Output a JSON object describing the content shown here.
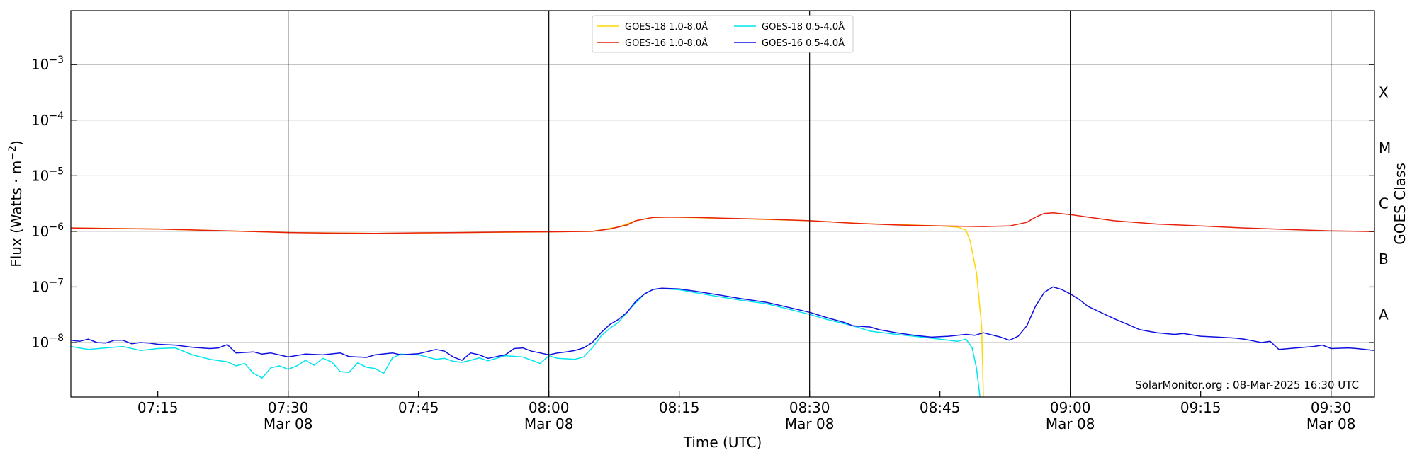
{
  "chart_data": {
    "type": "line",
    "xlabel": "Time (UTC)",
    "ylabel_parts": [
      "Flux (Watts · m",
      "−2",
      ")"
    ],
    "right_label": "GOES Class",
    "credit": "SolarMonitor.org : 08-Mar-2025 16:30 UTC",
    "x_range": [
      "07:05",
      "09:35"
    ],
    "y_log_range": [
      -8.98,
      -2.03
    ],
    "y_scale": "log",
    "grid": true,
    "legend_position": "top-center",
    "x_ticks": [
      {
        "time": "07:15",
        "label": "07:15",
        "date": ""
      },
      {
        "time": "07:30",
        "label": "07:30",
        "date": "Mar 08"
      },
      {
        "time": "07:45",
        "label": "07:45",
        "date": ""
      },
      {
        "time": "08:00",
        "label": "08:00",
        "date": "Mar 08"
      },
      {
        "time": "08:15",
        "label": "08:15",
        "date": ""
      },
      {
        "time": "08:30",
        "label": "08:30",
        "date": "Mar 08"
      },
      {
        "time": "08:45",
        "label": "08:45",
        "date": ""
      },
      {
        "time": "09:00",
        "label": "09:00",
        "date": "Mar 08"
      },
      {
        "time": "09:15",
        "label": "09:15",
        "date": ""
      },
      {
        "time": "09:30",
        "label": "09:30",
        "date": "Mar 08"
      }
    ],
    "y_ticks": [
      {
        "exp": -8,
        "base": "10",
        "power": "−8"
      },
      {
        "exp": -7,
        "base": "10",
        "power": "−7"
      },
      {
        "exp": -6,
        "base": "10",
        "power": "−6"
      },
      {
        "exp": -5,
        "base": "10",
        "power": "−5"
      },
      {
        "exp": -4,
        "base": "10",
        "power": "−4"
      },
      {
        "exp": -3,
        "base": "10",
        "power": "−3"
      }
    ],
    "goes_classes": [
      {
        "label": "A",
        "exp": -7.5
      },
      {
        "label": "B",
        "exp": -6.5
      },
      {
        "label": "C",
        "exp": -5.5
      },
      {
        "label": "M",
        "exp": -4.5
      },
      {
        "label": "X",
        "exp": -3.5
      }
    ],
    "vertical_lines": [
      "07:30",
      "08:00",
      "08:30",
      "09:00",
      "09:30"
    ],
    "series": [
      {
        "name": "GOES-18 1.0-8.0Å",
        "color": "#FFD700",
        "points": [
          [
            "07:05",
            1.15e-06
          ],
          [
            "07:15",
            1.1e-06
          ],
          [
            "07:30",
            9.5e-07
          ],
          [
            "07:40",
            9.2e-07
          ],
          [
            "07:50",
            9.5e-07
          ],
          [
            "08:00",
            9.8e-07
          ],
          [
            "08:05",
            1e-06
          ],
          [
            "08:08",
            1.2e-06
          ],
          [
            "08:10",
            1.55e-06
          ],
          [
            "08:12",
            1.78e-06
          ],
          [
            "08:14",
            1.8e-06
          ],
          [
            "08:20",
            1.72e-06
          ],
          [
            "08:30",
            1.55e-06
          ],
          [
            "08:36",
            1.38e-06
          ],
          [
            "08:45",
            1.25e-06
          ],
          [
            "08:47",
            1.2e-06
          ],
          [
            "08:48",
            1.05e-06
          ],
          [
            "08:48.5",
            6.5e-07
          ],
          [
            "08:49.2",
            1.8e-07
          ],
          [
            "08:49.8",
            2e-08
          ],
          [
            "08:50",
            5e-10
          ]
        ]
      },
      {
        "name": "GOES-16 1.0-8.0Å",
        "color": "#E8200C",
        "points": [
          [
            "07:05",
            1.15e-06
          ],
          [
            "07:10",
            1.12e-06
          ],
          [
            "07:15",
            1.1e-06
          ],
          [
            "07:20",
            1.05e-06
          ],
          [
            "07:25",
            1e-06
          ],
          [
            "07:30",
            9.5e-07
          ],
          [
            "07:35",
            9.3e-07
          ],
          [
            "07:40",
            9.2e-07
          ],
          [
            "07:45",
            9.4e-07
          ],
          [
            "07:50",
            9.5e-07
          ],
          [
            "07:55",
            9.7e-07
          ],
          [
            "08:00",
            9.8e-07
          ],
          [
            "08:05",
            1e-06
          ],
          [
            "08:07",
            1.1e-06
          ],
          [
            "08:09",
            1.3e-06
          ],
          [
            "08:10",
            1.55e-06
          ],
          [
            "08:12",
            1.78e-06
          ],
          [
            "08:14",
            1.8e-06
          ],
          [
            "08:17",
            1.78e-06
          ],
          [
            "08:20",
            1.72e-06
          ],
          [
            "08:25",
            1.65e-06
          ],
          [
            "08:30",
            1.55e-06
          ],
          [
            "08:35",
            1.4e-06
          ],
          [
            "08:40",
            1.3e-06
          ],
          [
            "08:45",
            1.25e-06
          ],
          [
            "08:50",
            1.22e-06
          ],
          [
            "08:53",
            1.25e-06
          ],
          [
            "08:55",
            1.45e-06
          ],
          [
            "08:56",
            1.8e-06
          ],
          [
            "08:57",
            2.1e-06
          ],
          [
            "08:58",
            2.15e-06
          ],
          [
            "09:00",
            2e-06
          ],
          [
            "09:02",
            1.8e-06
          ],
          [
            "09:05",
            1.55e-06
          ],
          [
            "09:10",
            1.35e-06
          ],
          [
            "09:15",
            1.25e-06
          ],
          [
            "09:20",
            1.15e-06
          ],
          [
            "09:25",
            1.08e-06
          ],
          [
            "09:30",
            1.02e-06
          ],
          [
            "09:35",
            9.9e-07
          ]
        ]
      },
      {
        "name": "GOES-18 0.5-4.0Å",
        "color": "#00E5EE",
        "points": [
          [
            "07:05",
            8.5e-09
          ],
          [
            "07:07",
            7.5e-09
          ],
          [
            "07:09",
            8e-09
          ],
          [
            "07:11",
            8.5e-09
          ],
          [
            "07:13",
            7.2e-09
          ],
          [
            "07:15",
            7.8e-09
          ],
          [
            "07:17",
            8e-09
          ],
          [
            "07:19",
            6e-09
          ],
          [
            "07:21",
            5e-09
          ],
          [
            "07:23",
            4.5e-09
          ],
          [
            "07:24",
            3.8e-09
          ],
          [
            "07:25",
            4.2e-09
          ],
          [
            "07:26",
            2.8e-09
          ],
          [
            "07:27",
            2.3e-09
          ],
          [
            "07:28",
            3.5e-09
          ],
          [
            "07:29",
            3.8e-09
          ],
          [
            "07:30",
            3.3e-09
          ],
          [
            "07:31",
            3.8e-09
          ],
          [
            "07:32",
            4.8e-09
          ],
          [
            "07:33",
            3.9e-09
          ],
          [
            "07:34",
            5.2e-09
          ],
          [
            "07:35",
            4.5e-09
          ],
          [
            "07:36",
            3e-09
          ],
          [
            "07:37",
            2.9e-09
          ],
          [
            "07:38",
            4.3e-09
          ],
          [
            "07:39",
            3.6e-09
          ],
          [
            "07:40",
            3.4e-09
          ],
          [
            "07:41",
            2.8e-09
          ],
          [
            "07:42",
            5.3e-09
          ],
          [
            "07:43",
            6.2e-09
          ],
          [
            "07:44",
            6e-09
          ],
          [
            "07:45",
            6e-09
          ],
          [
            "07:46",
            5.5e-09
          ],
          [
            "07:47",
            5e-09
          ],
          [
            "07:48",
            5.2e-09
          ],
          [
            "07:49",
            4.6e-09
          ],
          [
            "07:50",
            4.4e-09
          ],
          [
            "07:51",
            4.8e-09
          ],
          [
            "07:52",
            5.3e-09
          ],
          [
            "07:53",
            4.7e-09
          ],
          [
            "07:55",
            5.8e-09
          ],
          [
            "07:57",
            5.5e-09
          ],
          [
            "07:59",
            4.2e-09
          ],
          [
            "08:00",
            5.8e-09
          ],
          [
            "08:01",
            5.2e-09
          ],
          [
            "08:03",
            5e-09
          ],
          [
            "08:04",
            5.5e-09
          ],
          [
            "08:05",
            8e-09
          ],
          [
            "08:06",
            1.3e-08
          ],
          [
            "08:07",
            1.8e-08
          ],
          [
            "08:08",
            2.3e-08
          ],
          [
            "08:09",
            3.5e-08
          ],
          [
            "08:10",
            5.2e-08
          ],
          [
            "08:11",
            7.5e-08
          ],
          [
            "08:12",
            9e-08
          ],
          [
            "08:13",
            9.3e-08
          ],
          [
            "08:15",
            8.9e-08
          ],
          [
            "08:17",
            7.8e-08
          ],
          [
            "08:20",
            6.5e-08
          ],
          [
            "08:22",
            5.8e-08
          ],
          [
            "08:25",
            5e-08
          ],
          [
            "08:27",
            4.2e-08
          ],
          [
            "08:30",
            3.2e-08
          ],
          [
            "08:32",
            2.6e-08
          ],
          [
            "08:35",
            2e-08
          ],
          [
            "08:37",
            1.6e-08
          ],
          [
            "08:40",
            1.4e-08
          ],
          [
            "08:42",
            1.3e-08
          ],
          [
            "08:45",
            1.15e-08
          ],
          [
            "08:47",
            1.05e-08
          ],
          [
            "08:48",
            1.15e-08
          ],
          [
            "08:48.7",
            8e-09
          ],
          [
            "08:49.2",
            3.5e-09
          ],
          [
            "08:49.6",
            5e-10
          ]
        ]
      },
      {
        "name": "GOES-16 0.5-4.0Å",
        "color": "#1010E0",
        "points": [
          [
            "07:05",
            1.1e-08
          ],
          [
            "07:06",
            1.05e-08
          ],
          [
            "07:07",
            1.15e-08
          ],
          [
            "07:08",
            1e-08
          ],
          [
            "07:09",
            9.8e-09
          ],
          [
            "07:10",
            1.1e-08
          ],
          [
            "07:11",
            1.1e-08
          ],
          [
            "07:12",
            9.5e-09
          ],
          [
            "07:13",
            1e-08
          ],
          [
            "07:14",
            9.8e-09
          ],
          [
            "07:15",
            9.3e-09
          ],
          [
            "07:17",
            9e-09
          ],
          [
            "07:19",
            8.2e-09
          ],
          [
            "07:21",
            7.8e-09
          ],
          [
            "07:22",
            8e-09
          ],
          [
            "07:23",
            9.2e-09
          ],
          [
            "07:24",
            6.5e-09
          ],
          [
            "07:26",
            6.8e-09
          ],
          [
            "07:27",
            6.2e-09
          ],
          [
            "07:28",
            6.5e-09
          ],
          [
            "07:30",
            5.5e-09
          ],
          [
            "07:32",
            6.2e-09
          ],
          [
            "07:34",
            6e-09
          ],
          [
            "07:36",
            6.5e-09
          ],
          [
            "07:37",
            5.6e-09
          ],
          [
            "07:39",
            5.4e-09
          ],
          [
            "07:40",
            6e-09
          ],
          [
            "07:42",
            6.5e-09
          ],
          [
            "07:43",
            6e-09
          ],
          [
            "07:45",
            6.3e-09
          ],
          [
            "07:47",
            7.5e-09
          ],
          [
            "07:48",
            7e-09
          ],
          [
            "07:49",
            5.5e-09
          ],
          [
            "07:50",
            4.8e-09
          ],
          [
            "07:51",
            6.5e-09
          ],
          [
            "07:52",
            6e-09
          ],
          [
            "07:53",
            5.2e-09
          ],
          [
            "07:55",
            6e-09
          ],
          [
            "07:56",
            7.8e-09
          ],
          [
            "07:57",
            8e-09
          ],
          [
            "07:58",
            7e-09
          ],
          [
            "07:59",
            6.5e-09
          ],
          [
            "08:00",
            6e-09
          ],
          [
            "08:01",
            6.5e-09
          ],
          [
            "08:02",
            6.8e-09
          ],
          [
            "08:03",
            7.2e-09
          ],
          [
            "08:04",
            8e-09
          ],
          [
            "08:05",
            1e-08
          ],
          [
            "08:06",
            1.5e-08
          ],
          [
            "08:07",
            2.1e-08
          ],
          [
            "08:08",
            2.6e-08
          ],
          [
            "08:09",
            3.5e-08
          ],
          [
            "08:10",
            5.5e-08
          ],
          [
            "08:11",
            7.5e-08
          ],
          [
            "08:12",
            9e-08
          ],
          [
            "08:13",
            9.5e-08
          ],
          [
            "08:15",
            9.2e-08
          ],
          [
            "08:17",
            8.3e-08
          ],
          [
            "08:20",
            7e-08
          ],
          [
            "08:22",
            6.2e-08
          ],
          [
            "08:25",
            5.3e-08
          ],
          [
            "08:27",
            4.5e-08
          ],
          [
            "08:30",
            3.5e-08
          ],
          [
            "08:32",
            2.8e-08
          ],
          [
            "08:34",
            2.3e-08
          ],
          [
            "08:35",
            2e-08
          ],
          [
            "08:37",
            1.9e-08
          ],
          [
            "08:38",
            1.7e-08
          ],
          [
            "08:40",
            1.5e-08
          ],
          [
            "08:42",
            1.35e-08
          ],
          [
            "08:44",
            1.25e-08
          ],
          [
            "08:46",
            1.3e-08
          ],
          [
            "08:48",
            1.4e-08
          ],
          [
            "08:49",
            1.35e-08
          ],
          [
            "08:50",
            1.5e-08
          ],
          [
            "08:52",
            1.25e-08
          ],
          [
            "08:53",
            1.1e-08
          ],
          [
            "08:54",
            1.3e-08
          ],
          [
            "08:55",
            2e-08
          ],
          [
            "08:56",
            4.5e-08
          ],
          [
            "08:57",
            8e-08
          ],
          [
            "08:58",
            1e-07
          ],
          [
            "08:59",
            9e-08
          ],
          [
            "09:00",
            7.5e-08
          ],
          [
            "09:01",
            6e-08
          ],
          [
            "09:02",
            4.5e-08
          ],
          [
            "09:04",
            3.2e-08
          ],
          [
            "09:05",
            2.7e-08
          ],
          [
            "09:07",
            2e-08
          ],
          [
            "09:08",
            1.7e-08
          ],
          [
            "09:10",
            1.5e-08
          ],
          [
            "09:12",
            1.4e-08
          ],
          [
            "09:13",
            1.45e-08
          ],
          [
            "09:15",
            1.3e-08
          ],
          [
            "09:17",
            1.25e-08
          ],
          [
            "09:19",
            1.2e-08
          ],
          [
            "09:20",
            1.15e-08
          ],
          [
            "09:22",
            1e-08
          ],
          [
            "09:23",
            1.05e-08
          ],
          [
            "09:24",
            7.5e-09
          ],
          [
            "09:26",
            8e-09
          ],
          [
            "09:28",
            8.5e-09
          ],
          [
            "09:29",
            9e-09
          ],
          [
            "09:30",
            7.8e-09
          ],
          [
            "09:32",
            8e-09
          ],
          [
            "09:33",
            7.8e-09
          ],
          [
            "09:35",
            7.2e-09
          ]
        ]
      }
    ]
  }
}
